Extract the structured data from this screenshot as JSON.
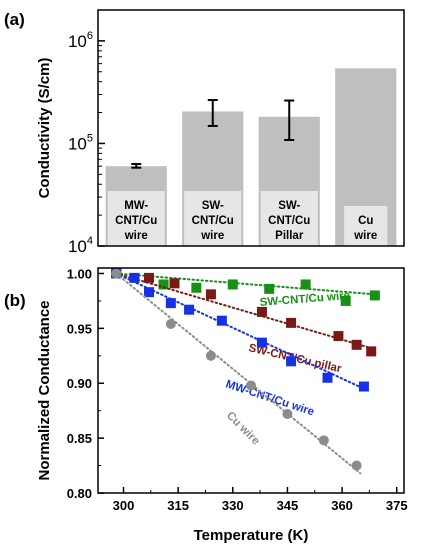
{
  "chart_data": [
    {
      "panel": "(a)",
      "type": "bar",
      "ylabel": "Conductivity (S/cm)",
      "yscale": "log",
      "ylim": [
        10000,
        2000000
      ],
      "yticks": [
        {
          "value": 10000,
          "base": "10",
          "exp": "4"
        },
        {
          "value": 100000,
          "base": "10",
          "exp": "5"
        },
        {
          "value": 1000000,
          "base": "10",
          "exp": "6"
        }
      ],
      "categories": [
        {
          "lines": [
            "MW-",
            "CNT/Cu",
            "wire"
          ]
        },
        {
          "lines": [
            "SW-",
            "CNT/Cu",
            "wire"
          ]
        },
        {
          "lines": [
            "SW-",
            "CNT/Cu",
            "Pillar"
          ]
        },
        {
          "lines": [
            "Cu",
            "wire"
          ]
        }
      ],
      "values": [
        60000,
        205000,
        182000,
        540000
      ],
      "error": [
        [
          58000,
          63000
        ],
        [
          148000,
          265000
        ],
        [
          108000,
          262000
        ],
        null
      ],
      "bar_color": "#bfbfbf",
      "label_box_color": "#e6e6e6"
    },
    {
      "panel": "(b)",
      "type": "scatter",
      "xlabel": "Temperature (K)",
      "ylabel": "Normalized Conductance",
      "xlim": [
        293,
        377
      ],
      "ylim": [
        0.8,
        1.005
      ],
      "xticks": [
        300,
        315,
        330,
        345,
        360,
        375
      ],
      "yticks": [
        0.8,
        0.85,
        0.9,
        0.95,
        1.0
      ],
      "series": [
        {
          "name": "SW-CNT/Cu wire",
          "marker": "square",
          "color": "#169116",
          "x": [
            298,
            311,
            320,
            330,
            340,
            350,
            361,
            369
          ],
          "y": [
            1.0,
            0.99,
            0.987,
            0.99,
            0.986,
            0.99,
            0.975,
            0.98
          ],
          "fit": [
            [
              298,
              1.0
            ],
            [
              369,
              0.981
            ]
          ]
        },
        {
          "name": "SW-CNT/Cu pillar",
          "marker": "square",
          "color": "#7a1a17",
          "x": [
            298,
            307,
            314,
            324,
            338,
            346,
            359,
            364,
            368
          ],
          "y": [
            1.0,
            0.996,
            0.991,
            0.981,
            0.965,
            0.955,
            0.943,
            0.935,
            0.929
          ],
          "fit": [
            [
              298,
              1.0
            ],
            [
              368,
              0.932
            ]
          ]
        },
        {
          "name": "MW-CNT/Cu wire",
          "marker": "square",
          "color": "#1732e6",
          "x": [
            298,
            303,
            307,
            313,
            318,
            327,
            338,
            346,
            356,
            366
          ],
          "y": [
            1.0,
            0.996,
            0.983,
            0.973,
            0.967,
            0.957,
            0.937,
            0.92,
            0.905,
            0.897
          ],
          "fit": [
            [
              298,
              1.0
            ],
            [
              366,
              0.895
            ]
          ]
        },
        {
          "name": "Cu wire",
          "marker": "circle",
          "color": "#8c8c8c",
          "x": [
            298,
            313,
            324,
            335,
            345,
            355,
            364
          ],
          "y": [
            1.0,
            0.954,
            0.925,
            0.898,
            0.872,
            0.848,
            0.825
          ],
          "fit": [
            [
              298,
              1.0
            ],
            [
              365,
              0.818
            ]
          ]
        }
      ]
    }
  ]
}
